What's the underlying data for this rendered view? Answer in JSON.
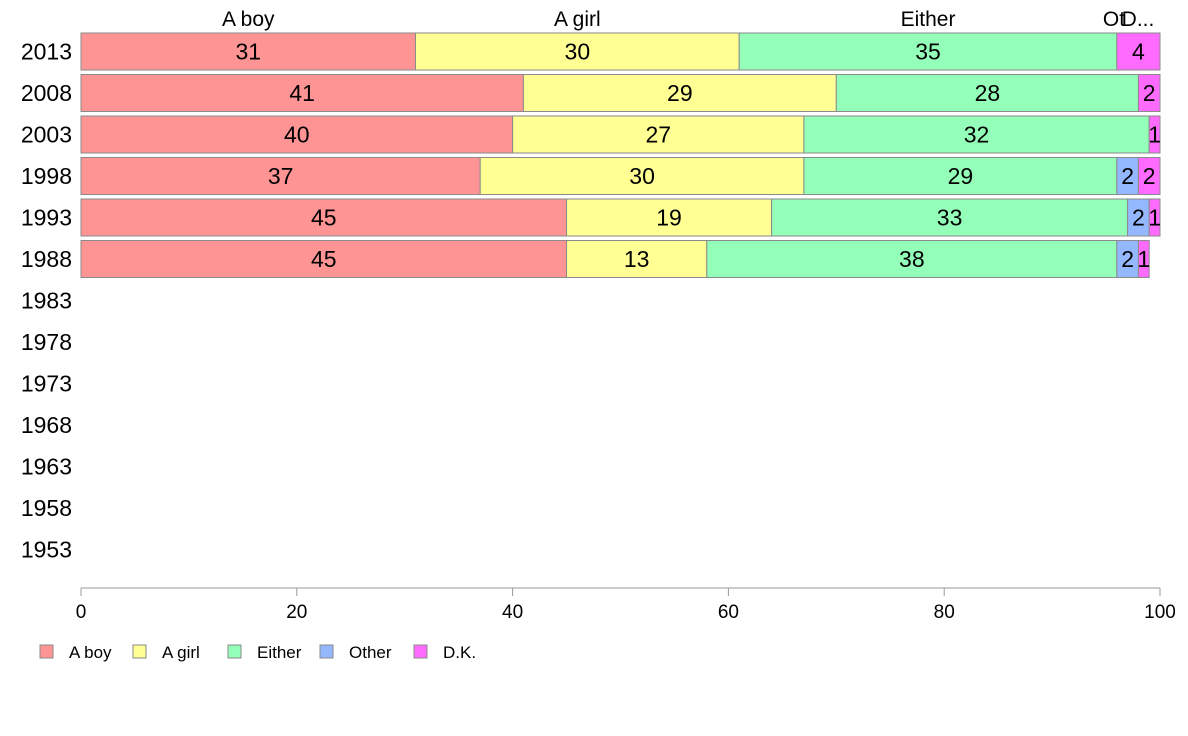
{
  "chart_data": {
    "type": "bar",
    "orientation": "horizontal",
    "stacked": true,
    "categories": [
      "2013",
      "2008",
      "2003",
      "1998",
      "1993",
      "1988",
      "1983",
      "1978",
      "1973",
      "1968",
      "1963",
      "1958",
      "1953"
    ],
    "series": [
      {
        "name": "A boy",
        "color": "#ff9494",
        "values": [
          31,
          41,
          40,
          37,
          45,
          45,
          null,
          null,
          null,
          null,
          null,
          null,
          null
        ]
      },
      {
        "name": "A girl",
        "color": "#ffff94",
        "values": [
          30,
          29,
          27,
          30,
          19,
          13,
          null,
          null,
          null,
          null,
          null,
          null,
          null
        ]
      },
      {
        "name": "Either",
        "color": "#94ffb8",
        "values": [
          35,
          28,
          32,
          29,
          33,
          38,
          null,
          null,
          null,
          null,
          null,
          null,
          null
        ]
      },
      {
        "name": "Other",
        "color": "#94b8ff",
        "values": [
          0,
          0,
          0,
          2,
          2,
          2,
          null,
          null,
          null,
          null,
          null,
          null,
          null
        ]
      },
      {
        "name": "D.K.",
        "color": "#ff6bff",
        "values": [
          4,
          2,
          1,
          2,
          1,
          1,
          null,
          null,
          null,
          null,
          null,
          null,
          null
        ]
      }
    ],
    "top_labels": [
      "A boy",
      "A girl",
      "Either",
      "Ot",
      "D..."
    ],
    "xlim": [
      0,
      100
    ],
    "xticks": [
      0,
      20,
      40,
      60,
      80,
      100
    ],
    "grid": false,
    "legend_position": "bottom-left",
    "title": "",
    "xlabel": "",
    "ylabel": ""
  }
}
